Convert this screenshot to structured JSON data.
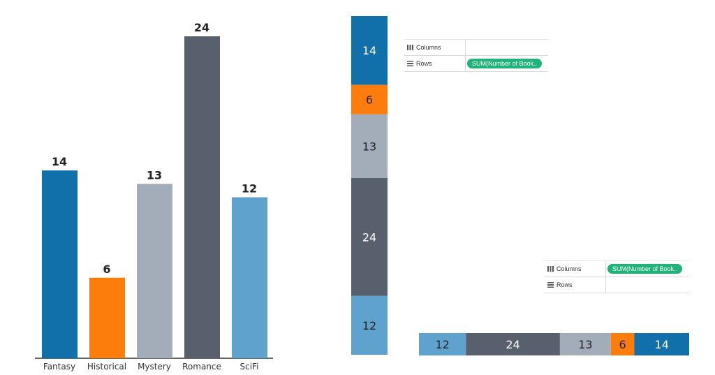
{
  "chart_data": [
    {
      "type": "bar",
      "categories": [
        "Fantasy",
        "Historical",
        "Mystery",
        "Romance",
        "SciFi"
      ],
      "values": [
        14,
        6,
        13,
        24,
        12
      ],
      "colors": [
        "#1170aa",
        "#fc7d0b",
        "#a3acb9",
        "#57606c",
        "#5fa2ce"
      ]
    },
    {
      "type": "stacked-column",
      "values": [
        12,
        24,
        13,
        6,
        14
      ],
      "colors": [
        "#5fa2ce",
        "#57606c",
        "#a3acb9",
        "#fc7d0b",
        "#1170aa"
      ]
    },
    {
      "type": "stacked-bar",
      "values": [
        12,
        24,
        13,
        6,
        14
      ],
      "colors": [
        "#5fa2ce",
        "#57606c",
        "#a3acb9",
        "#fc7d0b",
        "#1170aa"
      ]
    }
  ],
  "shelves": [
    {
      "columns_label": "Columns",
      "rows_label": "Rows",
      "rows_pill": "SUM(Number of Book.."
    },
    {
      "columns_label": "Columns",
      "columns_pill": "SUM(Number of Book..",
      "rows_label": "Rows"
    }
  ]
}
